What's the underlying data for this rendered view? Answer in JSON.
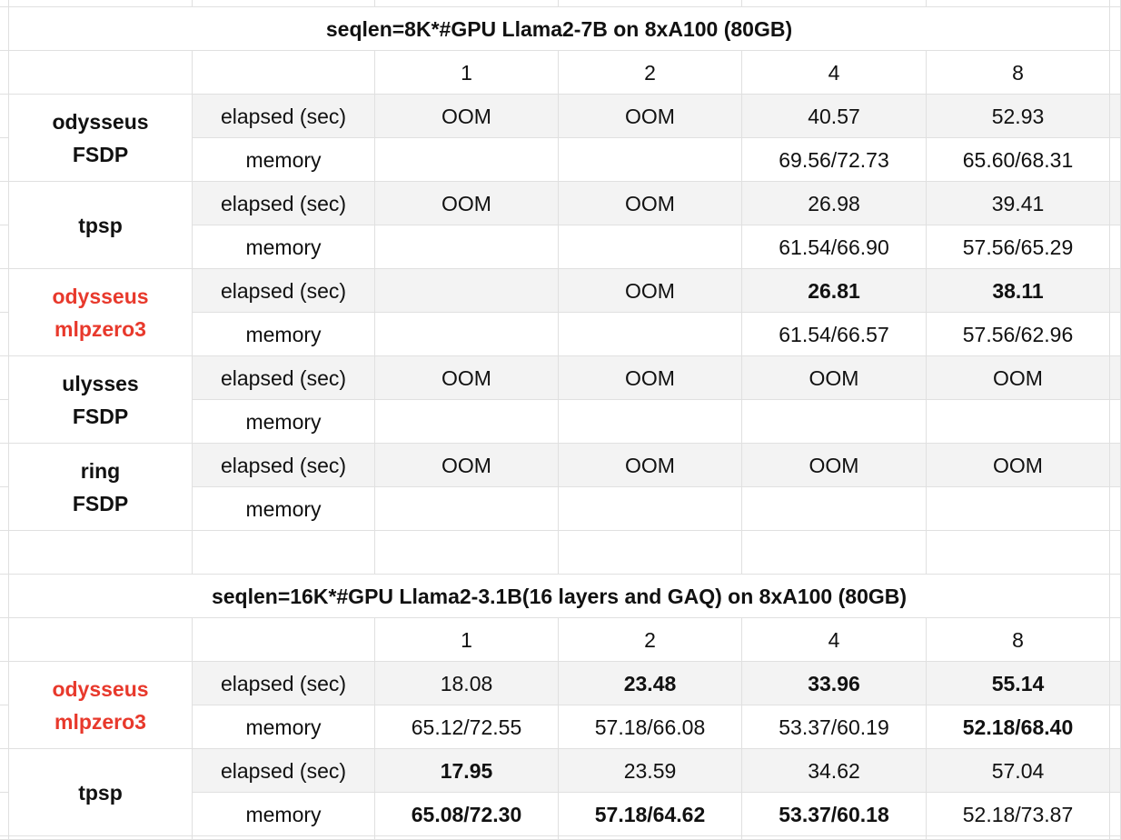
{
  "tables": [
    {
      "title": "seqlen=8K*#GPU Llama2-7B on 8xA100 (80GB)",
      "columns": [
        "1",
        "2",
        "4",
        "8"
      ],
      "groups": [
        {
          "name": [
            "odysseus",
            "FSDP"
          ],
          "rows": [
            {
              "label": "elapsed (sec)",
              "cells": [
                "OOM",
                "OOM",
                "40.57",
                "52.93"
              ]
            },
            {
              "label": "memory",
              "cells": [
                null,
                null,
                "69.56/72.73",
                "65.60/68.31"
              ]
            }
          ]
        },
        {
          "name": [
            "tpsp"
          ],
          "rows": [
            {
              "label": "elapsed (sec)",
              "cells": [
                "OOM",
                "OOM",
                "26.98",
                "39.41"
              ]
            },
            {
              "label": "memory",
              "cells": [
                null,
                null,
                "61.54/66.90",
                "57.56/65.29"
              ]
            }
          ]
        },
        {
          "name": [
            "odysseus",
            "mlpzero3"
          ],
          "color": "#e8392c",
          "rows": [
            {
              "label": "elapsed (sec)",
              "cells": [
                null,
                "OOM",
                "26.81",
                "38.11"
              ],
              "bold": [
                2,
                3
              ]
            },
            {
              "label": "memory",
              "cells": [
                null,
                null,
                "61.54/66.57",
                "57.56/62.96"
              ]
            }
          ]
        },
        {
          "name": [
            "ulysses",
            "FSDP"
          ],
          "rows": [
            {
              "label": "elapsed (sec)",
              "cells": [
                "OOM",
                "OOM",
                "OOM",
                "OOM"
              ]
            },
            {
              "label": "memory",
              "cells": [
                null,
                null,
                null,
                null
              ]
            }
          ]
        },
        {
          "name": [
            "ring",
            "FSDP"
          ],
          "rows": [
            {
              "label": "elapsed (sec)",
              "cells": [
                "OOM",
                "OOM",
                "OOM",
                "OOM"
              ]
            },
            {
              "label": "memory",
              "cells": [
                null,
                null,
                null,
                null
              ]
            }
          ]
        }
      ]
    },
    {
      "title": "seqlen=16K*#GPU Llama2-3.1B(16 layers and GAQ) on 8xA100 (80GB)",
      "columns": [
        "1",
        "2",
        "4",
        "8"
      ],
      "groups": [
        {
          "name": [
            "odysseus",
            "mlpzero3"
          ],
          "color": "#e8392c",
          "rows": [
            {
              "label": "elapsed (sec)",
              "cells": [
                "18.08",
                "23.48",
                "33.96",
                "55.14"
              ],
              "bold": [
                1,
                2,
                3
              ]
            },
            {
              "label": "memory",
              "cells": [
                "65.12/72.55",
                "57.18/66.08",
                "53.37/60.19",
                "52.18/68.40"
              ],
              "bold": [
                3
              ]
            }
          ]
        },
        {
          "name": [
            "tpsp"
          ],
          "rows": [
            {
              "label": "elapsed (sec)",
              "cells": [
                "17.95",
                "23.59",
                "34.62",
                "57.04"
              ],
              "bold": [
                0
              ]
            },
            {
              "label": "memory",
              "cells": [
                "65.08/72.30",
                "57.18/64.62",
                "53.37/60.18",
                "52.18/73.87"
              ],
              "bold": [
                0,
                1,
                2
              ]
            }
          ]
        }
      ]
    }
  ]
}
